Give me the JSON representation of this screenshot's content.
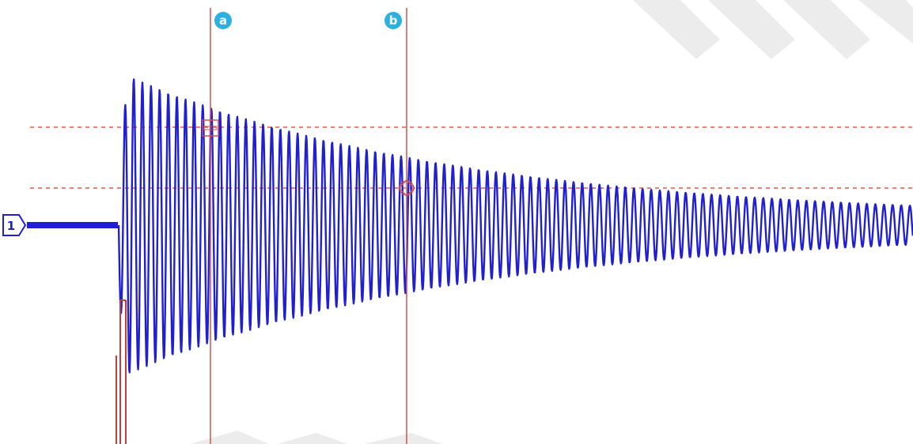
{
  "scope": {
    "trace_color": "#2020d0",
    "cursor_color": "#d05050",
    "level_color": "#e05a4a",
    "badge_color": "#2bb0e0",
    "watermark_color": "#d8d8d8",
    "channel_marker": {
      "label": "1",
      "icon": "channel-1-ground-marker-icon"
    },
    "cursors": [
      {
        "id": "a",
        "label": "a",
        "marker": "square"
      },
      {
        "id": "b",
        "label": "b",
        "marker": "diamond"
      }
    ]
  }
}
